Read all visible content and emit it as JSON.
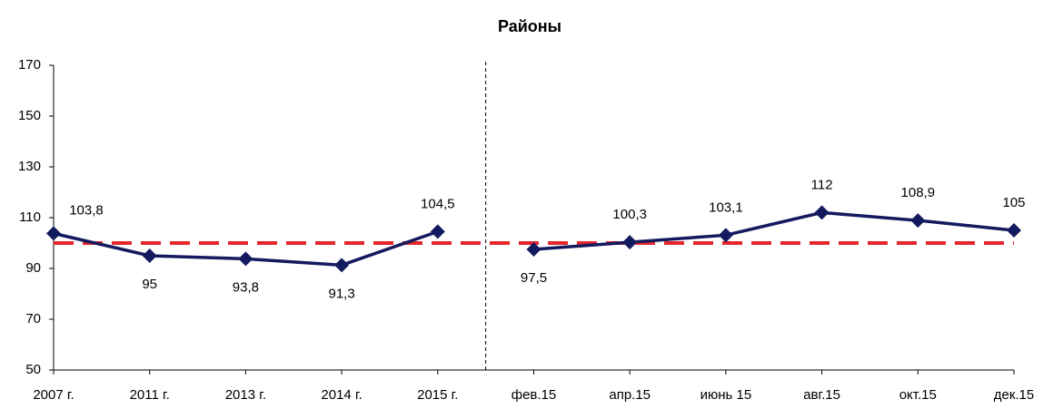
{
  "chart_data": {
    "type": "line",
    "title": "Районы",
    "categories": [
      "2007 г.",
      "2011 г.",
      "2013 г.",
      "2014 г.",
      "2015 г.",
      "фев.15",
      "апр.15",
      "июнь 15",
      "авг.15",
      "окт.15",
      "дек.15"
    ],
    "series": [
      {
        "color": "#131a5e",
        "values": [
          103.8,
          95,
          93.8,
          91.3,
          104.5,
          97.5,
          100.3,
          103.1,
          112,
          108.9,
          105
        ],
        "value_labels": [
          "103,8",
          "95",
          "93,8",
          "91,3",
          "104,5",
          "97,5",
          "100,3",
          "103,1",
          "112",
          "108,9",
          "105"
        ]
      }
    ],
    "ylim": [
      50,
      170
    ],
    "yticks": [
      50,
      70,
      90,
      110,
      130,
      150,
      170
    ],
    "reference_line": {
      "value": 100,
      "color": "#e3262b"
    },
    "divider_after_index": 4
  }
}
